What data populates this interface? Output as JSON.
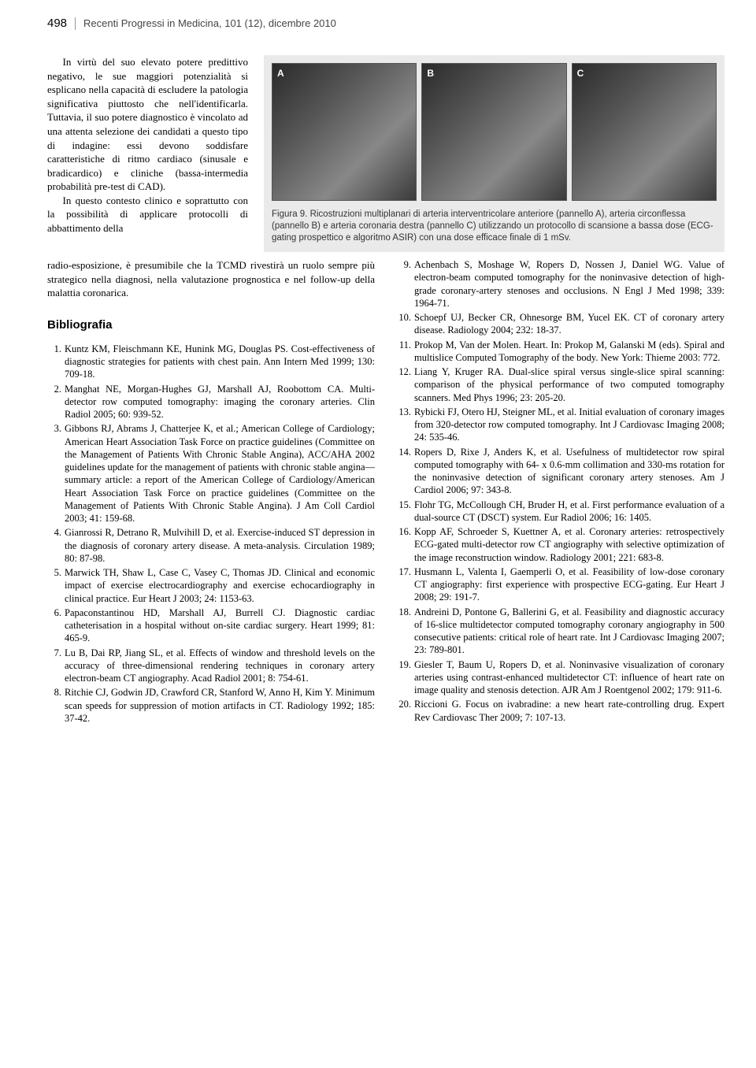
{
  "header": {
    "page_number": "498",
    "journal": "Recenti Progressi in Medicina, 101 (12), dicembre 2010"
  },
  "intro_paragraph_1": "In virtù del suo elevato potere predittivo negativo, le sue maggiori potenzialità si esplicano nella capacità di escludere la patologia significativa piuttosto che nell'identificarla. Tuttavia, il suo potere diagnostico è vincolato ad una attenta selezione dei candidati a questo tipo di indagine: essi devono soddisfare caratteristiche di ritmo cardiaco (sinusale e bradicardico) e cliniche (bassa-intermedia probabilità pre-test di CAD).",
  "intro_paragraph_2_start": "In questo contesto clinico e soprattutto con la possibilità di applicare protocolli di abbattimento della",
  "intro_paragraph_2_cont": "radio-esposizione, è presumibile che la TCMD rivestirà un ruolo sempre più strategico nella diagnosi, nella valutazione prognostica e nel follow-up della malattia coronarica.",
  "figure": {
    "panels": [
      "A",
      "B",
      "C"
    ],
    "caption": "Figura 9. Ricostruzioni multiplanari di arteria interventricolare anteriore (pannello A), arteria circonflessa (pannello B) e arteria coronaria destra (pannello C) utilizzando un protocollo di scansione a bassa dose (ECG-gating prospettico e algoritmo ASIR) con una dose efficace finale di 1 mSv."
  },
  "bibliography_title": "Bibliografia",
  "references_col1": [
    "Kuntz KM, Fleischmann KE, Hunink MG, Douglas PS. Cost-effectiveness of diagnostic strategies for patients with chest pain. Ann Intern Med 1999; 130: 709-18.",
    "Manghat NE, Morgan-Hughes GJ, Marshall AJ, Roobottom CA. Multi-detector row computed tomography: imaging the coronary arteries. Clin Radiol 2005; 60: 939-52.",
    "Gibbons RJ, Abrams J, Chatterjee K, et al.; American College of Cardiology; American Heart Association Task Force on practice guidelines (Committee on the Management of Patients With Chronic Stable Angina), ACC/AHA 2002 guidelines update for the management of patients with chronic stable angina—summary article: a report of the American College of Cardiology/American Heart Association Task Force on practice guidelines (Committee on the Management of Patients With Chronic Stable Angina). J Am Coll Cardiol 2003; 41: 159-68.",
    "Gianrossi R, Detrano R, Mulvihill D, et al. Exercise-induced ST depression in the diagnosis of coronary artery disease. A meta-analysis. Circulation 1989; 80: 87-98.",
    "Marwick TH, Shaw L, Case C, Vasey C, Thomas JD. Clinical and economic impact of exercise electrocardiography and exercise echocardiography in clinical practice. Eur Heart J 2003; 24: 1153-63.",
    "Papaconstantinou HD, Marshall AJ, Burrell CJ. Diagnostic cardiac catheterisation in a hospital without on-site cardiac surgery. Heart 1999; 81: 465-9.",
    "Lu B, Dai RP, Jiang SL, et al. Effects of window and threshold levels on the accuracy of three-dimensional rendering techniques in coronary artery electron-beam CT angiography. Acad Radiol 2001; 8: 754-61.",
    "Ritchie CJ, Godwin JD, Crawford CR, Stanford W, Anno H, Kim Y. Minimum scan speeds for suppression of motion artifacts in CT. Radiology 1992; 185: 37-42."
  ],
  "references_col2": [
    "Achenbach S, Moshage W, Ropers D, Nossen J, Daniel WG. Value of electron-beam computed tomography for the noninvasive detection of high-grade coronary-artery stenoses and occlusions. N Engl J Med 1998; 339: 1964-71.",
    "Schoepf UJ, Becker CR, Ohnesorge BM, Yucel EK. CT of coronary artery disease. Radiology 2004; 232: 18-37.",
    "Prokop M, Van der Molen. Heart. In: Prokop M, Galanski M (eds). Spiral and multislice Computed Tomography of the body. New York: Thieme 2003: 772.",
    "Liang Y, Kruger RA. Dual-slice spiral versus single-slice spiral scanning: comparison of the physical performance of two computed tomography scanners. Med Phys 1996; 23: 205-20.",
    "Rybicki FJ, Otero HJ, Steigner ML, et al. Initial evaluation of coronary images from 320-detector row computed tomography. Int J Cardiovasc Imaging 2008; 24: 535-46.",
    "Ropers D, Rixe J, Anders K, et al. Usefulness of multidetector row spiral computed tomography with 64- x 0.6-mm collimation and 330-ms rotation for the noninvasive detection of significant coronary artery stenoses. Am J Cardiol 2006; 97: 343-8.",
    "Flohr TG, McCollough CH, Bruder H, et al. First performance evaluation of a dual-source CT (DSCT) system. Eur Radiol 2006; 16: 1405.",
    "Kopp AF, Schroeder S, Kuettner A, et al. Coronary arteries: retrospectively ECG-gated multi-detector row CT angiography with selective optimization of the image reconstruction window. Radiology 2001; 221: 683-8.",
    "Husmann L, Valenta I, Gaemperli O, et al. Feasibility of low-dose coronary CT angiography: first experience with prospective ECG-gating. Eur Heart J 2008; 29: 191-7.",
    "Andreini D, Pontone G, Ballerini G, et al. Feasibility and diagnostic accuracy of 16-slice multidetector computed tomography coronary angiography in 500 consecutive patients: critical role of heart rate. Int J Cardiovasc Imaging 2007; 23: 789-801.",
    "Giesler T, Baum U, Ropers D, et al. Noninvasive visualization of coronary arteries using contrast-enhanced multidetector CT: influence of heart rate on image quality and stenosis detection. AJR Am J Roentgenol 2002; 179: 911-6.",
    "Riccioni G. Focus on ivabradine: a new heart rate-controlling drug. Expert Rev Cardiovasc Ther 2009; 7: 107-13."
  ]
}
